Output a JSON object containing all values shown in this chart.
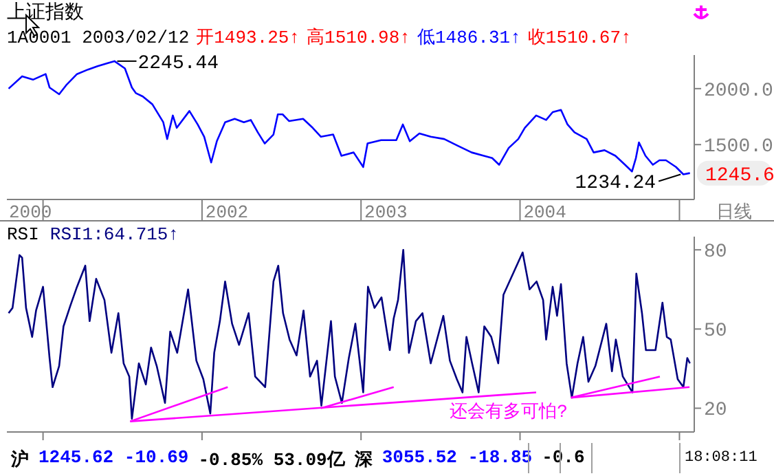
{
  "chart_data": [
    {
      "type": "line",
      "title": "上证指数",
      "subtitle": "1A0001 2003/02/12",
      "xlabel": "日线",
      "marker": "none",
      "grid": false,
      "xlim": [
        "2000-10-10",
        "2005-02-04"
      ],
      "xticks": [
        {
          "value": "2000-12-03",
          "label": "2000"
        },
        {
          "value": "2001-01-01",
          "label": null
        },
        {
          "value": "2002-01-01",
          "label": null
        },
        {
          "value": "2002-02-27",
          "label": "2002"
        },
        {
          "value": "2003-01-01",
          "label": null
        },
        {
          "value": "2003-02-27",
          "label": "2003"
        },
        {
          "value": "2004-01-01",
          "label": null
        },
        {
          "value": "2004-02-27",
          "label": "2004"
        },
        {
          "value": "2005-01-01",
          "label": null
        }
      ],
      "ylim": [
        1010,
        2300
      ],
      "yticks": [
        {
          "value": 1500,
          "label": "1500.0"
        },
        {
          "value": 2000,
          "label": "2000.0"
        }
      ],
      "annotations": [
        "开1493.25↑",
        "高1510.98↑",
        "低1486.31↑",
        "收1510.67↑",
        {
          "text": "2245.44",
          "x": "2001-06-14",
          "y": 2245.44
        },
        {
          "text": "1234.24",
          "x": "2005-01-10",
          "y": 1234.24
        },
        "1245.6"
      ],
      "series": [
        {
          "color": "#0000ff",
          "x": [
            "2000-10-14",
            "2000-11-14",
            "2000-12-09",
            "2001-01-07",
            "2001-01-16",
            "2001-02-07",
            "2001-02-23",
            "2001-03-20",
            "2001-04-14",
            "2001-05-06",
            "2001-05-31",
            "2001-06-14",
            "2001-07-08",
            "2001-07-24",
            "2001-08-02",
            "2001-08-18",
            "2001-09-09",
            "2001-10-04",
            "2001-10-13",
            "2001-10-26",
            "2001-11-04",
            "2001-12-03",
            "2001-12-22",
            "2002-01-06",
            "2002-01-22",
            "2002-02-04",
            "2002-02-23",
            "2002-03-17",
            "2002-04-07",
            "2002-04-23",
            "2002-05-09",
            "2002-05-25",
            "2002-06-14",
            "2002-06-24",
            "2002-07-05",
            "2002-07-20",
            "2002-08-21",
            "2002-09-12",
            "2002-10-01",
            "2002-10-29",
            "2002-11-17",
            "2002-12-15",
            "2003-01-06",
            "2003-01-16",
            "2003-02-16",
            "2003-03-23",
            "2003-04-07",
            "2003-04-23",
            "2003-05-15",
            "2003-06-10",
            "2003-07-11",
            "2003-08-11",
            "2003-09-12",
            "2003-10-10",
            "2003-10-29",
            "2003-11-14",
            "2003-12-06",
            "2003-12-28",
            "2004-01-12",
            "2004-02-07",
            "2004-03-01",
            "2004-03-16",
            "2004-04-04",
            "2004-04-19",
            "2004-05-05",
            "2004-06-02",
            "2004-06-18",
            "2004-07-13",
            "2004-08-07",
            "2004-08-29",
            "2004-09-14",
            "2004-09-23",
            "2004-09-30",
            "2004-10-15",
            "2004-11-01",
            "2004-11-16",
            "2004-12-01",
            "2004-12-24",
            "2005-01-10",
            "2005-01-25"
          ],
          "values": [
            2000,
            2110,
            2080,
            2130,
            2010,
            1950,
            2030,
            2130,
            2170,
            2200,
            2230,
            2245.44,
            2180,
            2010,
            1960,
            1930,
            1860,
            1700,
            1550,
            1760,
            1650,
            1800,
            1680,
            1570,
            1340,
            1530,
            1700,
            1730,
            1700,
            1720,
            1610,
            1510,
            1590,
            1770,
            1770,
            1710,
            1730,
            1650,
            1570,
            1590,
            1400,
            1430,
            1300,
            1510,
            1540,
            1540,
            1680,
            1530,
            1600,
            1570,
            1550,
            1490,
            1430,
            1400,
            1380,
            1320,
            1470,
            1550,
            1650,
            1760,
            1720,
            1790,
            1810,
            1680,
            1610,
            1550,
            1430,
            1450,
            1400,
            1320,
            1260,
            1380,
            1520,
            1400,
            1320,
            1360,
            1360,
            1300,
            1234.24,
            1245.6
          ]
        }
      ]
    },
    {
      "type": "line",
      "title": "RSI",
      "legend": "top left",
      "marker": "none",
      "grid": false,
      "tick_labels": "y",
      "xlim": [
        "2000-10-10",
        "2005-02-04"
      ],
      "xticks": [
        {
          "value": "2001-01-01",
          "label": null
        },
        {
          "value": "2002-01-01",
          "label": null
        },
        {
          "value": "2003-01-01",
          "label": null
        },
        {
          "value": "2004-01-01",
          "label": null
        },
        {
          "value": "2005-01-01",
          "label": null
        }
      ],
      "ylim": [
        11,
        85
      ],
      "yticks": [
        20,
        50,
        80
      ],
      "annotations": [
        "还会有多可怕?",
        "沪",
        "1245.62 -10.69",
        "-0.85% 53.09亿",
        "深",
        "3055.52 -18.85",
        "-0.6",
        "18:08:11"
      ],
      "series": [
        {
          "name": "RSI1:64.715↑",
          "color": "#000080",
          "x": [
            "2000-10-14",
            "2000-10-23",
            "2000-11-08",
            "2000-11-14",
            "2000-11-23",
            "2000-12-07",
            "2000-12-16",
            "2001-01-01",
            "2001-01-16",
            "2001-01-23",
            "2001-02-07",
            "2001-02-17",
            "2001-03-05",
            "2001-03-20",
            "2001-04-08",
            "2001-04-18",
            "2001-05-03",
            "2001-05-22",
            "2001-06-07",
            "2001-06-23",
            "2001-07-05",
            "2001-07-18",
            "2001-07-24",
            "2001-08-09",
            "2001-08-25",
            "2001-09-06",
            "2001-09-19",
            "2001-10-08",
            "2001-10-20",
            "2001-11-05",
            "2001-11-30",
            "2001-12-19",
            "2002-01-04",
            "2002-01-20",
            "2002-01-29",
            "2002-02-11",
            "2002-02-23",
            "2002-03-11",
            "2002-03-27",
            "2002-04-18",
            "2002-05-03",
            "2002-05-26",
            "2002-06-14",
            "2002-06-25",
            "2002-07-06",
            "2002-07-21",
            "2002-08-06",
            "2002-08-22",
            "2002-09-06",
            "2002-09-22",
            "2002-10-02",
            "2002-10-24",
            "2002-11-02",
            "2002-11-18",
            "2002-12-04",
            "2002-12-19",
            "2003-01-06",
            "2003-01-17",
            "2003-02-01",
            "2003-02-17",
            "2003-03-08",
            "2003-03-17",
            "2003-03-27",
            "2003-04-08",
            "2003-04-21",
            "2003-05-07",
            "2003-05-22",
            "2003-06-10",
            "2003-07-09",
            "2003-07-24",
            "2003-08-09",
            "2003-08-22",
            "2003-08-31",
            "2003-09-13",
            "2003-09-28",
            "2003-10-11",
            "2003-10-27",
            "2003-11-12",
            "2003-11-24",
            "2003-12-16",
            "2004-01-07",
            "2004-01-23",
            "2004-02-08",
            "2004-02-23",
            "2004-03-01",
            "2004-03-16",
            "2004-03-26",
            "2004-04-04",
            "2004-04-17",
            "2004-04-29",
            "2004-05-12",
            "2004-05-25",
            "2004-06-06",
            "2004-06-22",
            "2004-07-17",
            "2004-07-30",
            "2004-08-08",
            "2004-08-24",
            "2004-09-15",
            "2004-09-24",
            "2004-10-07",
            "2004-10-16",
            "2004-11-07",
            "2004-11-23",
            "2004-12-03",
            "2004-12-12",
            "2004-12-28",
            "2005-01-10",
            "2005-01-19",
            "2005-01-25"
          ],
          "values": [
            56,
            58,
            78,
            77,
            58,
            47,
            57,
            66,
            39,
            28,
            36,
            51,
            59,
            66,
            74,
            53,
            69,
            61,
            41,
            56,
            37,
            32,
            16,
            37,
            29,
            43,
            36,
            22,
            49,
            41,
            65,
            38,
            31,
            18,
            41,
            53,
            68,
            52,
            44,
            56,
            32,
            28,
            68,
            74,
            56,
            46,
            40,
            57,
            32,
            38,
            21,
            53,
            32,
            22,
            39,
            52,
            26,
            66,
            58,
            62,
            42,
            54,
            61,
            80,
            41,
            53,
            56,
            37,
            55,
            38,
            31,
            26,
            47,
            37,
            26,
            51,
            47,
            37,
            63,
            71,
            79,
            65,
            68,
            61,
            46,
            66,
            55,
            67,
            37,
            24,
            37,
            47,
            30,
            36,
            52,
            34,
            46,
            32,
            26,
            71,
            56,
            42,
            42,
            60,
            47,
            46,
            31,
            28,
            39,
            37
          ]
        },
        {
          "type": "line",
          "color": "#ff00ff",
          "x": [
            "2001-07-20",
            "2002-03-01"
          ],
          "values": [
            15,
            28
          ]
        },
        {
          "type": "line",
          "color": "#ff00ff",
          "x": [
            "2001-07-20",
            "2004-02-07"
          ],
          "values": [
            15,
            26
          ]
        },
        {
          "type": "line",
          "color": "#ff00ff",
          "x": [
            "2002-10-01",
            "2003-03-17"
          ],
          "values": [
            20,
            28
          ]
        },
        {
          "type": "line",
          "color": "#ff00ff",
          "x": [
            "2004-04-27",
            "2004-11-17"
          ],
          "values": [
            24,
            32
          ]
        },
        {
          "type": "line",
          "color": "#ff00ff",
          "x": [
            "2004-04-27",
            "2005-01-24"
          ],
          "values": [
            24,
            28
          ]
        }
      ]
    }
  ]
}
